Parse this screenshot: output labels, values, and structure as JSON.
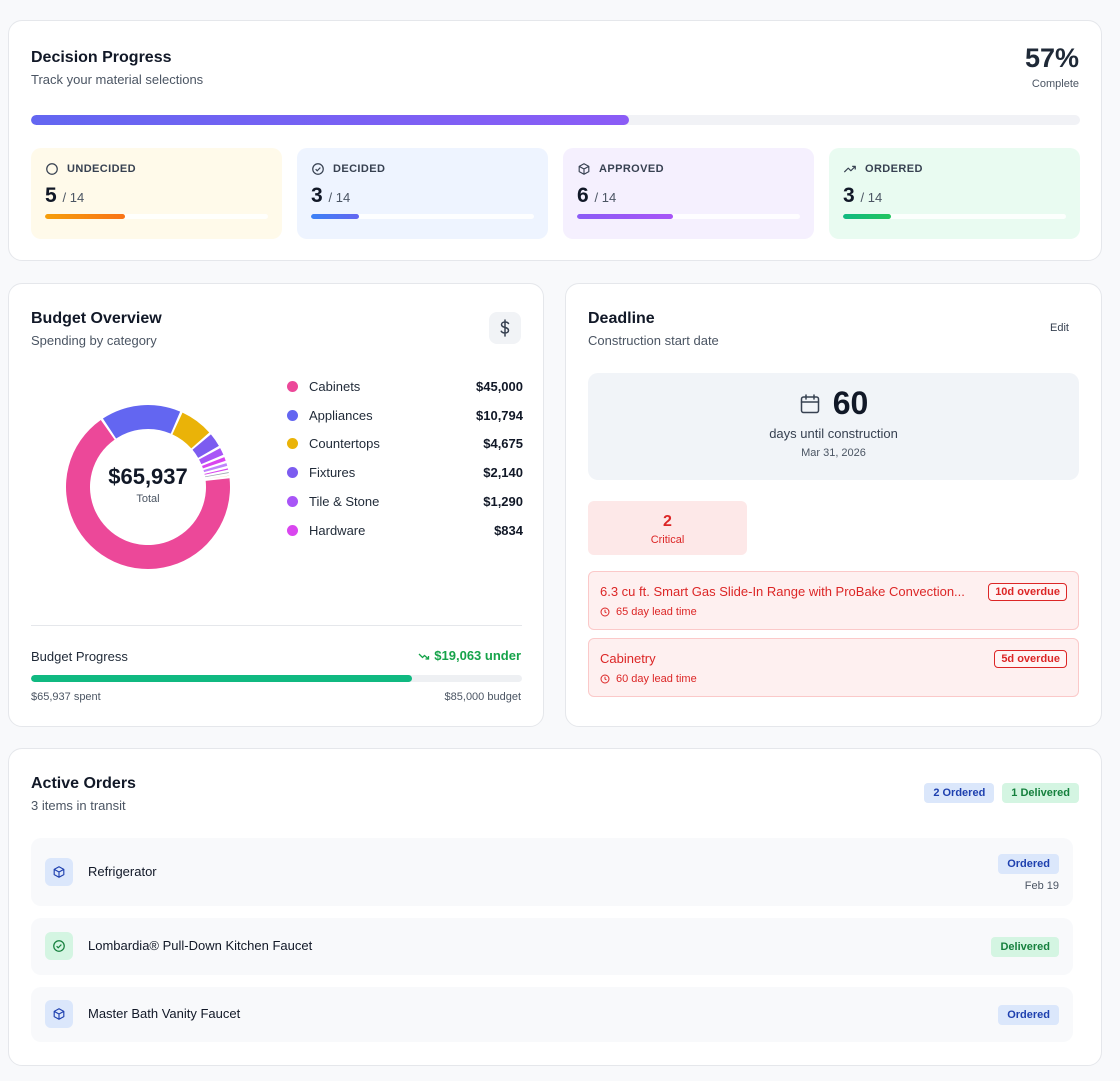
{
  "progress": {
    "title": "Decision Progress",
    "subtitle": "Track your material selections",
    "percent_label": "57%",
    "percent_value": 57,
    "complete_label": "Complete",
    "stats": [
      {
        "label": "UNDECIDED",
        "count": "5",
        "of": "/ 14",
        "fraction": 0.357,
        "bg": "#fffaea",
        "fill": "linear-gradient(90deg,#f59e0b,#f97316)",
        "icon": "circle-icon"
      },
      {
        "label": "DECIDED",
        "count": "3",
        "of": "/ 14",
        "fraction": 0.214,
        "bg": "#eef4ff",
        "fill": "linear-gradient(90deg,#3b82f6,#6366f1)",
        "icon": "check-circle-icon"
      },
      {
        "label": "APPROVED",
        "count": "6",
        "of": "/ 14",
        "fraction": 0.429,
        "bg": "#f5f0fe",
        "fill": "linear-gradient(90deg,#8b5cf6,#a855f7)",
        "icon": "package-icon"
      },
      {
        "label": "ORDERED",
        "count": "3",
        "of": "/ 14",
        "fraction": 0.214,
        "bg": "#e9fbf1",
        "fill": "linear-gradient(90deg,#10b981,#22c55e)",
        "icon": "trending-up-icon"
      }
    ]
  },
  "budget": {
    "title": "Budget Overview",
    "subtitle": "Spending by category",
    "total": "$65,937",
    "total_label": "Total",
    "categories": [
      {
        "name": "Cabinets",
        "value": "$45,000",
        "amount": 45000,
        "color": "#ec4899"
      },
      {
        "name": "Appliances",
        "value": "$10,794",
        "amount": 10794,
        "color": "#6366f1"
      },
      {
        "name": "Countertops",
        "value": "$4,675",
        "amount": 4675,
        "color": "#eab308"
      },
      {
        "name": "Fixtures",
        "value": "$2,140",
        "amount": 2140,
        "color": "#7c5cf0"
      },
      {
        "name": "Tile & Stone",
        "value": "$1,290",
        "amount": 1290,
        "color": "#a855f7"
      },
      {
        "name": "Hardware",
        "value": "$834",
        "amount": 834,
        "color": "#d946ef"
      }
    ],
    "extra_slices": [
      {
        "amount": 700,
        "color": "#c084fc"
      },
      {
        "amount": 500,
        "color": "#d946ef"
      },
      {
        "amount": 450,
        "color": "#9ca3af"
      },
      {
        "amount": 350,
        "color": "#f97316"
      }
    ],
    "progress_label": "Budget Progress",
    "under_label": "$19,063 under",
    "spent_label": "$65,937 spent",
    "budget_label": "$85,000 budget",
    "spent_fraction": 0.7757
  },
  "deadline": {
    "title": "Deadline",
    "subtitle": "Construction start date",
    "edit_label": "Edit",
    "days": "60",
    "days_label": "days until construction",
    "date": "Mar 31, 2026",
    "critical_count": "2",
    "critical_label": "Critical",
    "alerts": [
      {
        "name": "6.3 cu ft. Smart Gas Slide-In Range with ProBake Convection...",
        "lead": "65 day lead time",
        "badge": "10d overdue"
      },
      {
        "name": "Cabinetry",
        "lead": "60 day lead time",
        "badge": "5d overdue"
      }
    ]
  },
  "orders": {
    "title": "Active Orders",
    "subtitle": "3 items in transit",
    "badge_ordered": "2 Ordered",
    "badge_delivered": "1 Delivered",
    "items": [
      {
        "name": "Refrigerator",
        "status": "Ordered",
        "date": "Feb 19"
      },
      {
        "name": "Lombardia® Pull-Down Kitchen Faucet",
        "status": "Delivered",
        "date": ""
      },
      {
        "name": "Master Bath Vanity Faucet",
        "status": "Ordered",
        "date": ""
      }
    ]
  }
}
